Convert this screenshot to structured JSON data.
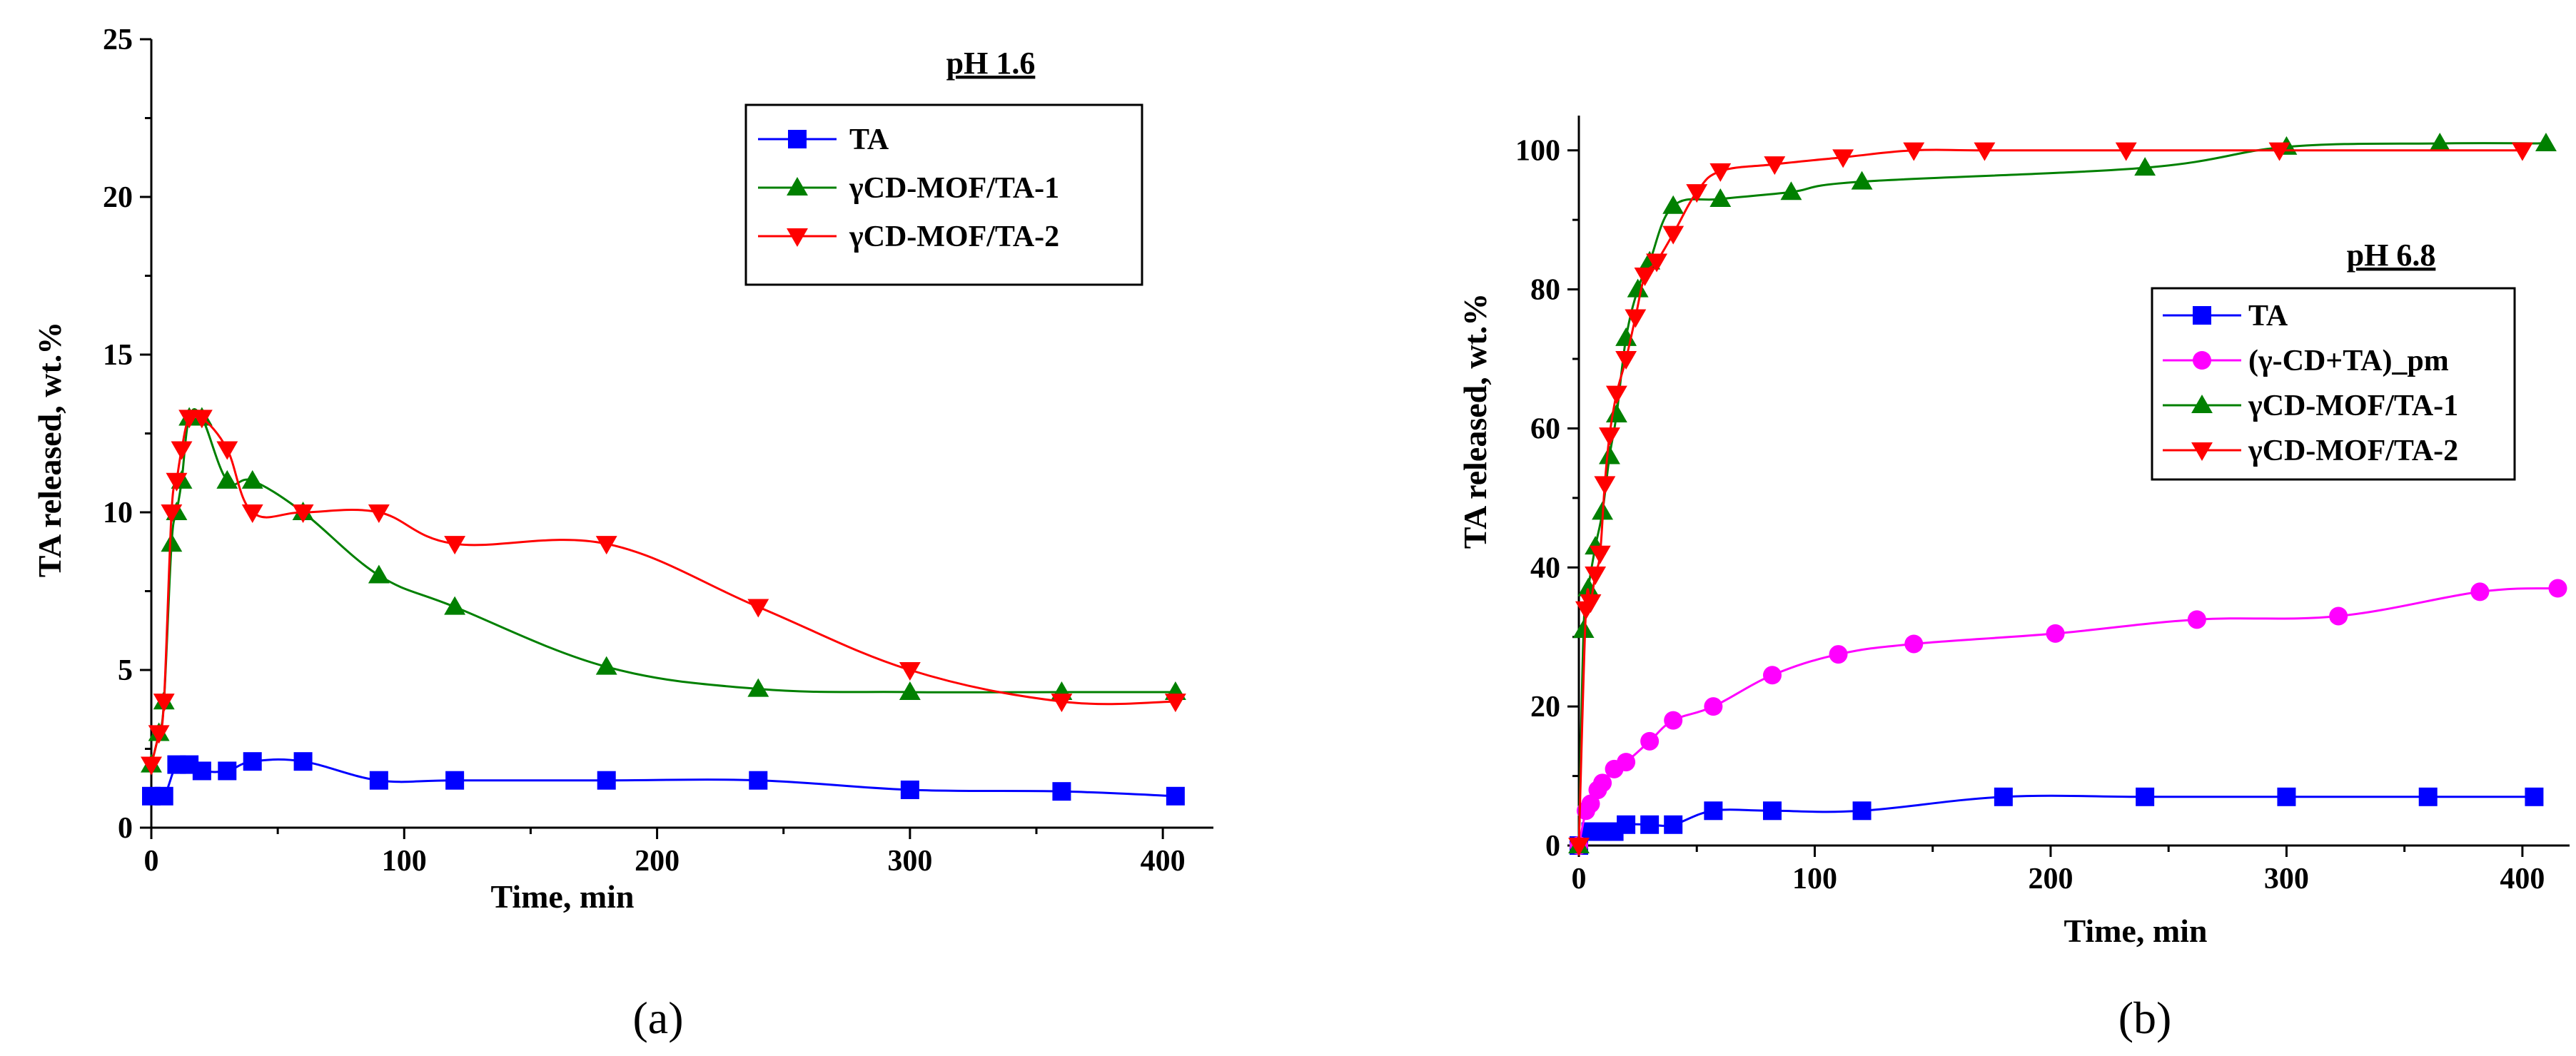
{
  "chart_data": [
    {
      "type": "line",
      "panel_label": "(a)",
      "annotation": "pH 1.6",
      "xlabel": "Time, min",
      "ylabel": "TA released, wt.%",
      "xlim": [
        0,
        420
      ],
      "ylim": [
        0,
        25
      ],
      "xticks": [
        0,
        100,
        200,
        300,
        400
      ],
      "yticks": [
        0,
        5,
        10,
        15,
        20,
        25
      ],
      "legend_placement": "top-right",
      "series": [
        {
          "name": "TA",
          "color": "#0000ff",
          "marker": "square",
          "x": [
            0,
            5,
            10,
            15,
            20,
            30,
            40,
            60,
            90,
            120,
            180,
            240,
            300,
            360,
            405
          ],
          "y": [
            1,
            1,
            2,
            2,
            1.8,
            1.8,
            2.1,
            2.1,
            1.5,
            1.5,
            1.5,
            1.5,
            1.2,
            1.15,
            1
          ]
        },
        {
          "name": "γCD-MOF/TA-1",
          "color": "#008000",
          "marker": "triangle-up",
          "x": [
            0,
            3,
            5,
            8,
            10,
            12,
            15,
            20,
            30,
            40,
            60,
            90,
            120,
            180,
            240,
            300,
            360,
            405
          ],
          "y": [
            2,
            3,
            4,
            9,
            10,
            11,
            13,
            13,
            11,
            11,
            10,
            8,
            7,
            5.1,
            4.4,
            4.3,
            4.3,
            4.3
          ]
        },
        {
          "name": "γCD-MOF/TA-2",
          "color": "#ff0000",
          "marker": "triangle-down",
          "x": [
            0,
            3,
            5,
            8,
            10,
            12,
            15,
            20,
            30,
            40,
            60,
            90,
            120,
            180,
            240,
            300,
            360,
            405
          ],
          "y": [
            2,
            3,
            4,
            10,
            11,
            12,
            13,
            13,
            12,
            10,
            10,
            10,
            9,
            9,
            7,
            5,
            4,
            4
          ]
        }
      ]
    },
    {
      "type": "line",
      "panel_label": "(b)",
      "annotation": "pH 6.8",
      "xlabel": "Time, min",
      "ylabel": "TA released, wt.%",
      "xlim": [
        0,
        420
      ],
      "ylim": [
        0,
        105
      ],
      "xticks": [
        0,
        100,
        200,
        300,
        400
      ],
      "yticks": [
        0,
        20,
        40,
        60,
        80,
        100
      ],
      "legend_placement": "right",
      "series": [
        {
          "name": "TA",
          "color": "#0000ff",
          "marker": "square",
          "x": [
            0,
            5,
            10,
            15,
            20,
            30,
            40,
            57,
            82,
            120,
            180,
            240,
            300,
            360,
            405
          ],
          "y": [
            0,
            2,
            2,
            2,
            3,
            3,
            3,
            5,
            5,
            5,
            7,
            7,
            7,
            7,
            7
          ]
        },
        {
          "name": "(γ-CD+TA)_pm",
          "color": "#ff00ff",
          "marker": "circle",
          "x": [
            0,
            3,
            5,
            8,
            10,
            15,
            20,
            30,
            40,
            57,
            82,
            110,
            142,
            202,
            262,
            322,
            382,
            415
          ],
          "y": [
            0,
            5,
            6,
            8,
            9,
            11,
            12,
            15,
            18,
            20,
            24.5,
            27.5,
            29,
            30.5,
            32.5,
            33,
            36.5,
            37
          ]
        },
        {
          "name": "γCD-MOF/TA-1",
          "color": "#008000",
          "marker": "triangle-up",
          "x": [
            0,
            2,
            4,
            7,
            10,
            13,
            16,
            20,
            25,
            30,
            40,
            60,
            90,
            120,
            240,
            300,
            365,
            410
          ],
          "y": [
            0,
            31,
            37,
            43,
            48,
            56,
            62,
            73,
            80,
            84,
            92,
            93,
            94,
            95.5,
            97.5,
            100.5,
            101,
            101
          ]
        },
        {
          "name": "γCD-MOF/TA-2",
          "color": "#ff0000",
          "marker": "triangle-down",
          "x": [
            0,
            3,
            5,
            7,
            9,
            11,
            13,
            16,
            20,
            24,
            28,
            33,
            40,
            50,
            60,
            83,
            112,
            142,
            172,
            232,
            297,
            400
          ],
          "y": [
            0,
            34,
            35,
            39,
            42,
            52,
            59,
            65,
            70,
            76,
            82,
            84,
            88,
            94,
            97,
            98,
            99,
            100,
            100,
            100,
            100,
            100
          ]
        }
      ]
    }
  ]
}
